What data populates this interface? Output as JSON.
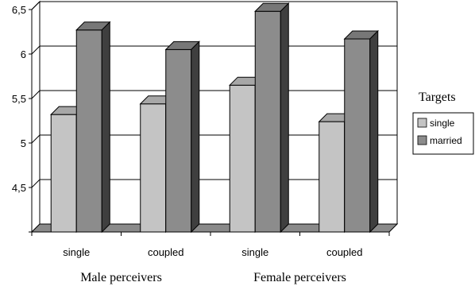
{
  "chart_data": {
    "type": "bar",
    "title": "",
    "xlabel": "",
    "ylabel": "",
    "ylim": [
      4,
      6.5
    ],
    "yticks": [
      "4,5",
      "5",
      "5,5",
      "6",
      "6,5"
    ],
    "ytick_values": [
      4.5,
      5,
      5.5,
      6,
      6.5
    ],
    "categories": [
      "single",
      "coupled",
      "single",
      "coupled"
    ],
    "groups": [
      {
        "label": "Male perceivers",
        "categories": [
          0,
          1
        ]
      },
      {
        "label": "Female perceivers",
        "categories": [
          2,
          3
        ]
      }
    ],
    "series": [
      {
        "name": "single",
        "values": [
          5.32,
          5.44,
          5.65,
          5.24
        ],
        "color": "#c4c4c4"
      },
      {
        "name": "married",
        "values": [
          6.27,
          6.05,
          6.48,
          6.17
        ],
        "color": "#8c8c8c"
      }
    ],
    "legend": {
      "title": "Targets",
      "placement": "right"
    },
    "grid": true,
    "style": "3d-bar"
  }
}
